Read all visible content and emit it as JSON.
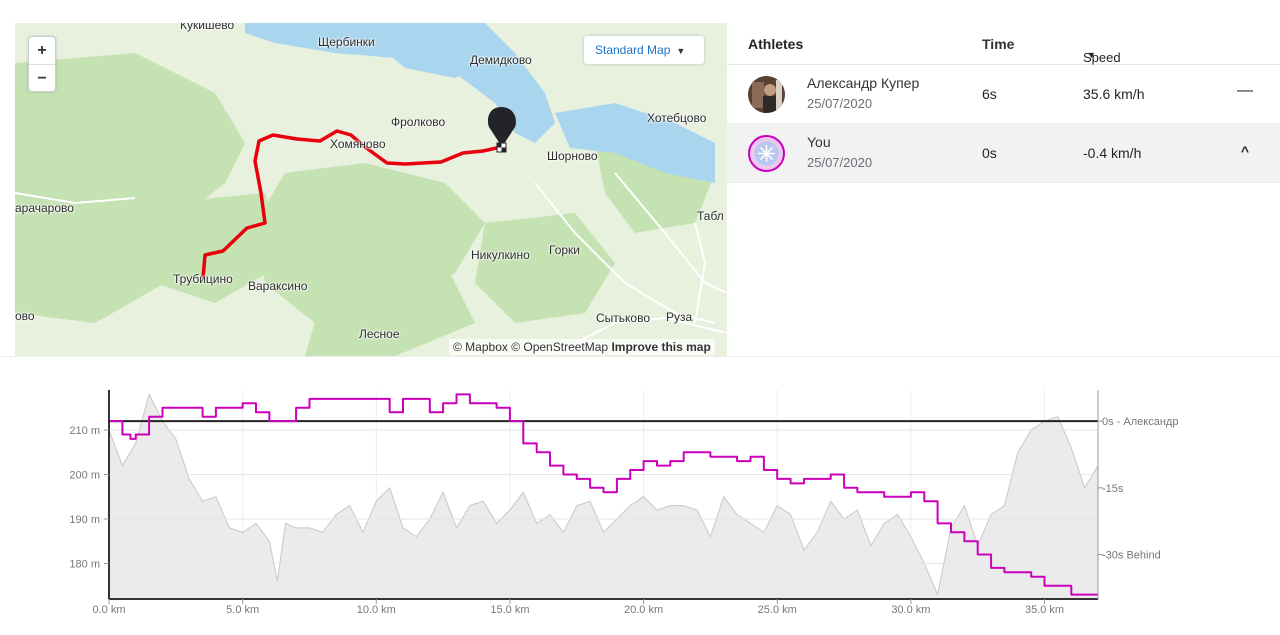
{
  "map": {
    "zoom_in": "+",
    "zoom_out": "−",
    "style_label": "Standard Map",
    "attribution": "© Mapbox © OpenStreetMap",
    "improve_label": "Improve this map",
    "places": [
      "Кукишево",
      "Щербинки",
      "Демидково",
      "Фролково",
      "Хотебцово",
      "Хомяново",
      "Шорново",
      "арачарово",
      "Табл",
      "Никулкино",
      "Горки",
      "Трубицино",
      "Вараксино",
      "ово",
      "Сытьково",
      "Руза",
      "Лесное"
    ],
    "colors": {
      "route": "#e8000b",
      "water": "#a8d4ef",
      "forest": "#c7e3b6",
      "land": "#eaf2e0"
    }
  },
  "panel": {
    "headers": {
      "athletes": "Athletes",
      "time": "Time",
      "speed": "Speed"
    },
    "rows": [
      {
        "name": "Александр Купер",
        "date": "25/07/2020",
        "time": "6s",
        "speed": "35.6 km/h",
        "control": "—"
      },
      {
        "name": "You",
        "date": "25/07/2020",
        "time": "0s",
        "speed": "-0.4 km/h",
        "control": "^"
      }
    ]
  },
  "chart_data": {
    "type": "line",
    "x_tick_labels": [
      "0.0 km",
      "5.0 km",
      "10.0 km",
      "15.0 km",
      "20.0 km",
      "25.0 km",
      "30.0 km",
      "35.0 km"
    ],
    "left_tick_labels": [
      "210 m",
      "200 m",
      "190 m",
      "180 m"
    ],
    "right_tick_labels": [
      "0s - Александр",
      "-15s",
      "-30s Behind"
    ],
    "xlim": [
      0,
      37
    ],
    "elevation_ylim": [
      172,
      219
    ],
    "gap_ylim": [
      -40,
      7
    ],
    "colors": {
      "elevation_fill": "#ebebeb",
      "elevation_line": "#c8c8c8",
      "gap_line": "#cc00bb",
      "reference": "#222222"
    },
    "elevation": {
      "x": [
        0,
        0.5,
        1,
        1.5,
        2,
        2.5,
        3,
        3.5,
        4,
        4.5,
        5,
        5.5,
        6,
        6.3,
        6.6,
        7,
        7.5,
        8,
        8.5,
        9,
        9.5,
        10,
        10.5,
        11,
        11.5,
        12,
        12.5,
        13,
        13.5,
        14,
        14.5,
        15,
        15.5,
        16,
        16.5,
        17,
        17.5,
        18,
        18.5,
        19,
        19.5,
        20,
        20.5,
        21,
        21.5,
        22,
        22.5,
        23,
        23.5,
        24,
        24.5,
        25,
        25.5,
        26,
        26.5,
        27,
        27.5,
        28,
        28.5,
        29,
        29.5,
        30,
        30.5,
        31,
        31.5,
        32,
        32.5,
        33,
        33.5,
        34,
        34.5,
        35,
        35.5,
        36,
        36.5,
        37
      ],
      "y": [
        210,
        202,
        207,
        218,
        212,
        208,
        199,
        194,
        195,
        188,
        187,
        189,
        185,
        176,
        189,
        188,
        188,
        187,
        191,
        193,
        187,
        194,
        197,
        188,
        186,
        190,
        196,
        188,
        193,
        194,
        189,
        192,
        196,
        189,
        191,
        187,
        193,
        194,
        187,
        190,
        193,
        195,
        192,
        193,
        193,
        192,
        186,
        195,
        191,
        189,
        187,
        193,
        191,
        183,
        187,
        194,
        190,
        192,
        184,
        189,
        191,
        186,
        180,
        173,
        188,
        193,
        184,
        191,
        193,
        205,
        210,
        212,
        213,
        206,
        197,
        202
      ]
    },
    "gap_seconds": {
      "x": [
        0,
        0.5,
        0.8,
        1,
        1.5,
        2,
        2.5,
        3,
        3.5,
        4,
        4.5,
        5,
        5.5,
        6,
        6.5,
        7,
        7.5,
        8,
        8.5,
        9,
        9.5,
        10,
        10.5,
        11,
        11.5,
        12,
        12.5,
        13,
        13.5,
        14,
        14.5,
        15,
        15.5,
        16,
        16.5,
        17,
        17.5,
        18,
        18.5,
        19,
        19.5,
        20,
        20.5,
        21,
        21.5,
        22,
        22.5,
        23,
        23.5,
        24,
        24.5,
        25,
        25.5,
        26,
        26.5,
        27,
        27.5,
        28,
        28.5,
        29,
        29.5,
        30,
        30.5,
        31,
        31.5,
        32,
        32.5,
        33,
        33.5,
        34,
        34.5,
        35,
        35.5,
        36,
        36.5,
        37
      ],
      "y": [
        0,
        -3,
        -4,
        -3,
        1,
        3,
        3,
        3,
        1,
        3,
        3,
        4,
        2,
        0,
        0,
        3,
        5,
        5,
        5,
        5,
        5,
        5,
        2,
        5,
        5,
        2,
        4,
        6,
        4,
        4,
        3,
        0,
        -5,
        -7,
        -10,
        -12,
        -13,
        -15,
        -16,
        -13,
        -11,
        -9,
        -10,
        -9,
        -7,
        -7,
        -8,
        -8,
        -9,
        -8,
        -11,
        -13,
        -14,
        -13,
        -13,
        -12,
        -15,
        -16,
        -16,
        -17,
        -17,
        -16,
        -18,
        -23,
        -25,
        -27,
        -30,
        -33,
        -34,
        -34,
        -35,
        -37,
        -37,
        -39,
        -39,
        -39
      ]
    }
  }
}
